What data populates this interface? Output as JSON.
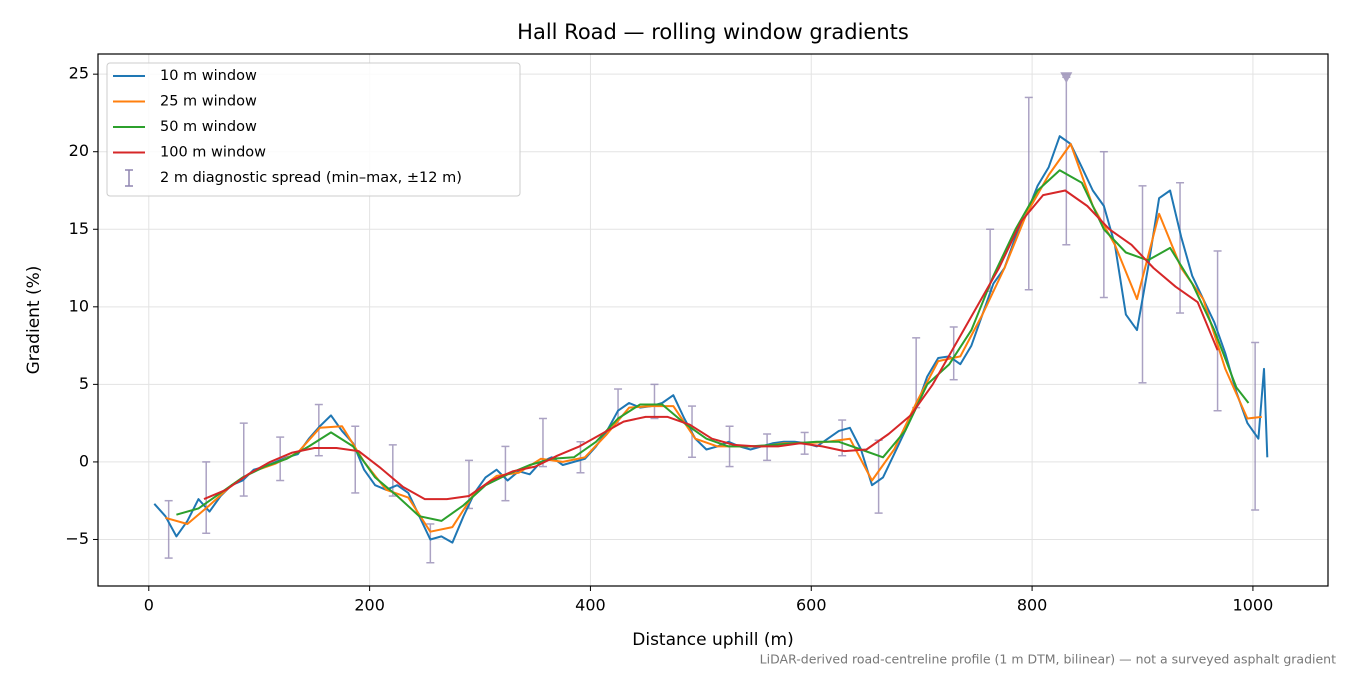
{
  "chart_data": {
    "type": "line",
    "title": "Hall Road — rolling window gradients",
    "xlabel": "Distance uphill (m)",
    "ylabel": "Gradient (%)",
    "footnote": "LiDAR-derived road-centreline profile (1 m DTM, bilinear) — not a surveyed asphalt gradient",
    "xlim": [
      -46,
      1068
    ],
    "ylim": [
      -8,
      26.3
    ],
    "xticks": [
      0,
      200,
      400,
      600,
      800,
      1000
    ],
    "yticks": [
      {
        "value": -5,
        "label": "−5"
      },
      0,
      5,
      10,
      15,
      20,
      25
    ],
    "grid": true,
    "legend": "upper left",
    "series": [
      {
        "name": "10 m window",
        "color": "#1f77b4",
        "x": [
          5,
          15,
          25,
          35,
          45,
          55,
          65,
          75,
          85,
          95,
          105,
          115,
          125,
          135,
          145,
          155,
          165,
          175,
          185,
          195,
          205,
          215,
          225,
          235,
          245,
          255,
          265,
          275,
          285,
          295,
          305,
          315,
          325,
          335,
          345,
          355,
          365,
          375,
          385,
          395,
          405,
          415,
          425,
          435,
          445,
          455,
          465,
          475,
          485,
          495,
          505,
          515,
          525,
          535,
          545,
          555,
          565,
          575,
          585,
          595,
          605,
          615,
          625,
          635,
          645,
          655,
          665,
          675,
          685,
          695,
          705,
          715,
          725,
          735,
          745,
          755,
          765,
          775,
          785,
          795,
          805,
          815,
          825,
          835,
          845,
          855,
          865,
          875,
          885,
          895,
          905,
          915,
          925,
          935,
          945,
          955,
          965,
          975,
          985,
          995,
          1005,
          1010,
          1013
        ],
        "values": [
          -2.7,
          -3.5,
          -4.8,
          -3.8,
          -2.4,
          -3.2,
          -2.2,
          -1.5,
          -1.2,
          -0.5,
          -0.3,
          0.0,
          0.3,
          0.5,
          1.5,
          2.3,
          3.0,
          2.0,
          1.2,
          -0.5,
          -1.5,
          -1.8,
          -1.5,
          -2.0,
          -3.5,
          -5.0,
          -4.8,
          -5.2,
          -3.5,
          -2.0,
          -1.0,
          -0.5,
          -1.2,
          -0.6,
          -0.8,
          0.0,
          0.3,
          -0.2,
          0.0,
          0.2,
          1.0,
          2.0,
          3.3,
          3.8,
          3.5,
          3.6,
          3.8,
          4.3,
          2.8,
          1.5,
          0.8,
          1.0,
          1.3,
          1.0,
          0.8,
          1.0,
          1.2,
          1.3,
          1.3,
          1.2,
          1.0,
          1.5,
          2.0,
          2.2,
          0.8,
          -1.5,
          -1.0,
          0.5,
          2.0,
          3.5,
          5.5,
          6.7,
          6.8,
          6.3,
          7.5,
          9.5,
          11.5,
          12.5,
          14.5,
          16.0,
          17.8,
          19.0,
          21.0,
          20.5,
          19.0,
          17.5,
          16.5,
          14.0,
          9.5,
          8.5,
          12.5,
          17.0,
          17.5,
          14.5,
          12.0,
          10.5,
          9.0,
          7.0,
          4.5,
          2.5,
          1.5,
          6.0,
          0.3
        ]
      },
      {
        "name": "25 m window",
        "color": "#ff7f0e",
        "x": [
          15,
          35,
          55,
          75,
          95,
          115,
          135,
          155,
          175,
          195,
          215,
          235,
          255,
          275,
          295,
          315,
          335,
          355,
          375,
          395,
          415,
          435,
          455,
          475,
          495,
          515,
          535,
          555,
          575,
          595,
          615,
          635,
          655,
          675,
          695,
          715,
          735,
          755,
          775,
          795,
          815,
          835,
          855,
          875,
          895,
          915,
          935,
          955,
          975,
          995,
          1008
        ],
        "values": [
          -3.6,
          -4.0,
          -2.8,
          -1.5,
          -0.6,
          -0.1,
          0.6,
          2.2,
          2.3,
          0.0,
          -1.8,
          -2.3,
          -4.5,
          -4.2,
          -2.0,
          -0.9,
          -0.7,
          0.2,
          0.0,
          0.3,
          1.8,
          3.5,
          3.6,
          3.6,
          1.5,
          1.0,
          1.0,
          1.0,
          1.2,
          1.2,
          1.3,
          1.5,
          -1.2,
          0.8,
          3.8,
          6.5,
          6.8,
          9.5,
          12.5,
          16.0,
          18.5,
          20.5,
          16.5,
          14.0,
          10.5,
          16.0,
          12.5,
          10.5,
          6.0,
          2.8,
          2.9
        ]
      },
      {
        "name": "50 m window",
        "color": "#2ca02c",
        "x": [
          25,
          45,
          65,
          85,
          105,
          125,
          145,
          165,
          185,
          205,
          225,
          245,
          265,
          285,
          305,
          325,
          345,
          365,
          385,
          405,
          425,
          445,
          465,
          485,
          505,
          525,
          545,
          565,
          585,
          605,
          625,
          645,
          665,
          685,
          705,
          725,
          745,
          765,
          785,
          805,
          825,
          845,
          865,
          885,
          905,
          925,
          945,
          965,
          985,
          996
        ],
        "values": [
          -3.4,
          -3.0,
          -2.0,
          -1.0,
          -0.3,
          0.2,
          1.0,
          1.9,
          1.0,
          -1.0,
          -2.2,
          -3.5,
          -3.8,
          -2.8,
          -1.5,
          -0.8,
          -0.2,
          0.2,
          0.3,
          1.3,
          2.8,
          3.7,
          3.7,
          2.5,
          1.5,
          1.0,
          1.0,
          1.1,
          1.2,
          1.3,
          1.3,
          0.8,
          0.3,
          2.0,
          5.0,
          6.3,
          8.5,
          12.0,
          15.0,
          17.5,
          18.8,
          18.0,
          15.0,
          13.5,
          13.0,
          13.8,
          11.5,
          8.5,
          4.8,
          3.8
        ]
      },
      {
        "name": "100 m window",
        "color": "#d62728",
        "x": [
          50,
          70,
          90,
          110,
          130,
          150,
          170,
          190,
          210,
          230,
          250,
          270,
          290,
          310,
          330,
          350,
          370,
          390,
          410,
          430,
          450,
          470,
          490,
          510,
          530,
          550,
          570,
          590,
          610,
          630,
          650,
          670,
          690,
          710,
          730,
          750,
          770,
          790,
          810,
          830,
          850,
          870,
          890,
          910,
          930,
          950,
          968
        ],
        "values": [
          -2.4,
          -1.8,
          -0.8,
          0.0,
          0.6,
          0.9,
          0.9,
          0.7,
          -0.4,
          -1.6,
          -2.4,
          -2.4,
          -2.2,
          -1.2,
          -0.6,
          -0.3,
          0.4,
          1.0,
          1.8,
          2.6,
          2.9,
          2.9,
          2.4,
          1.5,
          1.1,
          1.0,
          1.0,
          1.2,
          1.0,
          0.7,
          0.8,
          1.8,
          3.0,
          5.0,
          7.5,
          10.0,
          12.5,
          15.5,
          17.2,
          17.5,
          16.5,
          15.0,
          14.0,
          12.5,
          11.3,
          10.3,
          7.2
        ]
      }
    ],
    "spread": {
      "name": "2 m diagnostic spread (min–max, ±12 m)",
      "color": "#8f84b0",
      "x": [
        18,
        52,
        86,
        119,
        154,
        187,
        221,
        255,
        290,
        323,
        357,
        391,
        425,
        458,
        492,
        526,
        560,
        594,
        628,
        661,
        695,
        729,
        762,
        797,
        831,
        865,
        900,
        934,
        968,
        1002
      ],
      "lower": [
        -6.2,
        -4.6,
        -2.2,
        -1.2,
        0.4,
        -2.0,
        -2.2,
        -6.5,
        -3.0,
        -2.5,
        -0.3,
        -0.7,
        2.5,
        2.8,
        0.3,
        -0.3,
        0.1,
        0.5,
        0.4,
        -3.3,
        3.5,
        5.3,
        11.0,
        11.1,
        14.0,
        10.6,
        5.1,
        9.6,
        3.3,
        -3.1
      ],
      "upper": [
        -2.5,
        0.0,
        2.5,
        1.6,
        3.7,
        2.3,
        1.1,
        -4.0,
        0.1,
        1.0,
        2.8,
        1.3,
        4.7,
        5.0,
        3.6,
        2.3,
        1.8,
        1.9,
        2.7,
        1.4,
        8.0,
        8.7,
        15.0,
        23.5,
        24.8,
        20.0,
        17.8,
        18.0,
        13.6,
        7.7
      ],
      "clipped": [
        false,
        false,
        false,
        false,
        false,
        false,
        false,
        false,
        false,
        false,
        false,
        false,
        false,
        false,
        false,
        false,
        false,
        false,
        false,
        false,
        false,
        false,
        false,
        false,
        true,
        false,
        false,
        false,
        false,
        false
      ]
    }
  }
}
